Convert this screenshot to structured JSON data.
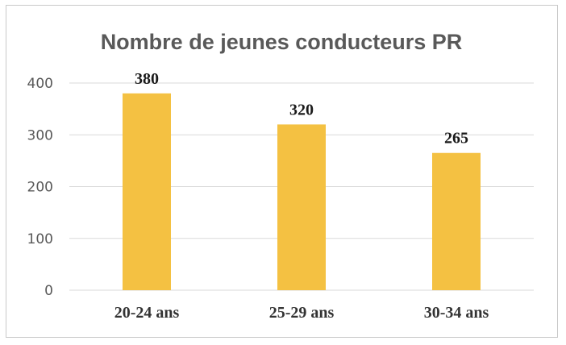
{
  "chart_data": {
    "type": "bar",
    "title": "Nombre de jeunes conducteurs PR",
    "categories": [
      "20-24 ans",
      "25-29 ans",
      "30-34 ans"
    ],
    "values": [
      380,
      320,
      265
    ],
    "data_labels": [
      "380",
      "320",
      "265"
    ],
    "xlabel": "",
    "ylabel": "",
    "ylim": [
      0,
      400
    ],
    "yticks": [
      0,
      100,
      200,
      300,
      400
    ],
    "grid": true,
    "legend": "none",
    "bar_color": "#F4C142"
  }
}
